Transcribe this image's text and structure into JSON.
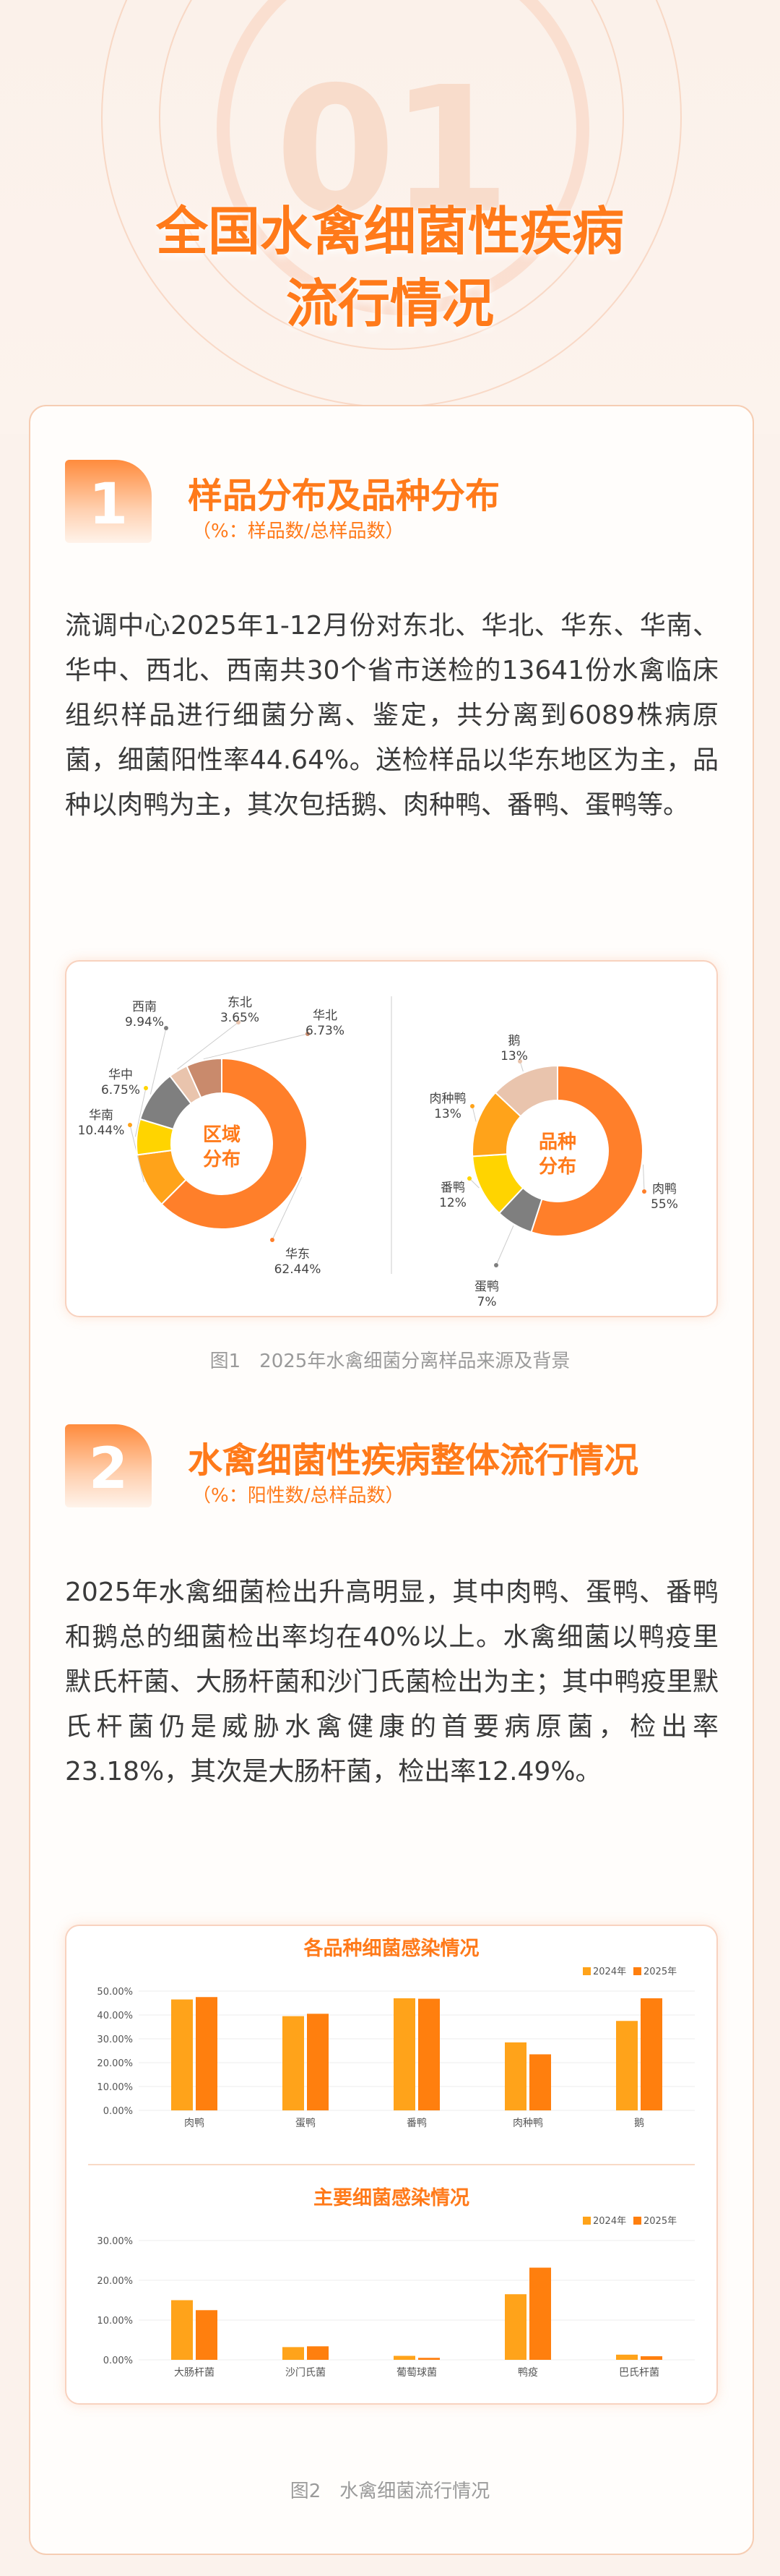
{
  "header": {
    "number": "01",
    "title_line1": "全国水禽细菌性疾病",
    "title_line2": "流行情况"
  },
  "section1": {
    "badge": "1",
    "title": "样品分布及品种分布",
    "subtitle": "（%：样品数/总样品数）",
    "paragraph": "流调中心2025年1-12月份对东北、华北、华东、华南、华中、西北、西南共30个省市送检的13641份水禽临床组织样品进行细菌分离、鉴定，共分离到6089株病原菌，细菌阳性率44.64%。送检样品以华东地区为主，品种以肉鸭为主，其次包括鹅、肉种鸭、番鸭、蛋鸭等。",
    "caption": "图1　2025年水禽细菌分离样品来源及背景"
  },
  "section2": {
    "badge": "2",
    "title": "水禽细菌性疾病整体流行情况",
    "subtitle": "（%：阳性数/总样品数）",
    "paragraph": "2025年水禽细菌检出升高明显，其中肉鸭、蛋鸭、番鸭和鹅总的细菌检出率均在40%以上。水禽细菌以鸭疫里默氏杆菌、大肠杆菌和沙门氏菌检出为主；其中鸭疫里默氏杆菌仍是威胁水禽健康的首要病原菌，检出率23.18%，其次是大肠杆菌，检出率12.49%。",
    "caption": "图2　水禽细菌流行情况"
  },
  "chart_data": [
    {
      "type": "pie",
      "center_label": [
        "区域",
        "分布"
      ],
      "slices": [
        {
          "name": "华东",
          "value": 62.44,
          "color": "#ff7f2a"
        },
        {
          "name": "华南",
          "value": 10.44,
          "color": "#ffa31a"
        },
        {
          "name": "华中",
          "value": 6.75,
          "color": "#ffd400"
        },
        {
          "name": "西南",
          "value": 9.94,
          "color": "#7f7f7f"
        },
        {
          "name": "东北",
          "value": 3.65,
          "color": "#e9c4ad"
        },
        {
          "name": "华北",
          "value": 6.73,
          "color": "#c98a6c"
        }
      ],
      "labels": [
        {
          "name": "华东",
          "pct": "62.44%"
        },
        {
          "name": "华南",
          "pct": "10.44%"
        },
        {
          "name": "华中",
          "pct": "6.75%"
        },
        {
          "name": "西南",
          "pct": "9.94%"
        },
        {
          "name": "东北",
          "pct": "3.65%"
        },
        {
          "name": "华北",
          "pct": "6.73%"
        }
      ]
    },
    {
      "type": "pie",
      "center_label": [
        "品种",
        "分布"
      ],
      "slices": [
        {
          "name": "肉鸭",
          "value": 55,
          "color": "#ff7f2a"
        },
        {
          "name": "蛋鸭",
          "value": 7,
          "color": "#7f7f7f"
        },
        {
          "name": "番鸭",
          "value": 12,
          "color": "#ffd400"
        },
        {
          "name": "肉种鸭",
          "value": 13,
          "color": "#ffa31a"
        },
        {
          "name": "鹅",
          "value": 13,
          "color": "#e9c4ad"
        }
      ],
      "labels": [
        {
          "name": "肉鸭",
          "pct": "55%"
        },
        {
          "name": "蛋鸭",
          "pct": "7%"
        },
        {
          "name": "番鸭",
          "pct": "12%"
        },
        {
          "name": "肉种鸭",
          "pct": "13%"
        },
        {
          "name": "鹅",
          "pct": "13%"
        }
      ]
    },
    {
      "type": "bar",
      "title": "各品种细菌感染情况",
      "categories": [
        "肉鸭",
        "蛋鸭",
        "番鸭",
        "肉种鸭",
        "鹅"
      ],
      "series": [
        {
          "name": "2024年",
          "values": [
            46.5,
            39.5,
            47.0,
            28.5,
            37.5
          ],
          "color": "#ffa31a"
        },
        {
          "name": "2025年",
          "values": [
            47.5,
            40.5,
            46.8,
            23.5,
            47.0
          ],
          "color": "#ff7f0e"
        }
      ],
      "yticks": [
        "0.00%",
        "10.00%",
        "20.00%",
        "30.00%",
        "40.00%",
        "50.00%"
      ],
      "ylim": [
        0,
        50
      ]
    },
    {
      "type": "bar",
      "title": "主要细菌感染情况",
      "categories": [
        "大肠杆菌",
        "沙门氏菌",
        "葡萄球菌",
        "鸭疫",
        "巴氏杆菌"
      ],
      "series": [
        {
          "name": "2024年",
          "values": [
            15.0,
            3.2,
            1.0,
            16.5,
            1.3
          ],
          "color": "#ffa31a"
        },
        {
          "name": "2025年",
          "values": [
            12.49,
            3.4,
            0.5,
            23.18,
            0.9
          ],
          "color": "#ff7f0e"
        }
      ],
      "yticks": [
        "0.00%",
        "10.00%",
        "20.00%",
        "30.00%"
      ],
      "ylim": [
        0,
        30
      ]
    }
  ]
}
